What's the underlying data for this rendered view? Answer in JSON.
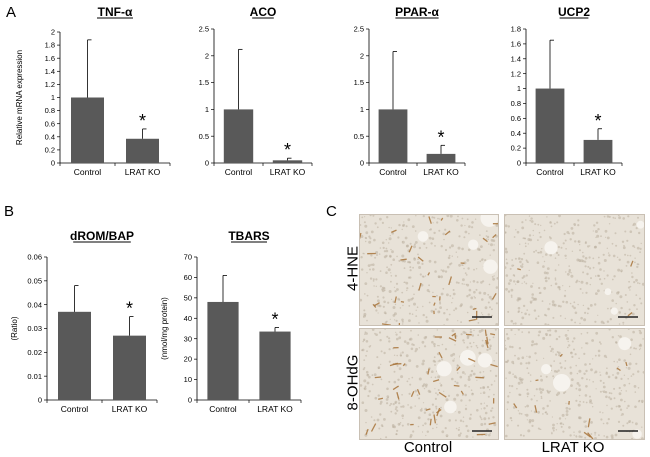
{
  "panels": {
    "a": "A",
    "b": "B",
    "c": "C"
  },
  "chart_data": [
    {
      "type": "bar",
      "title": "TNF-α",
      "ylabel": "Relative mRNA expression",
      "categories": [
        "Control",
        "LRAT KO"
      ],
      "values": [
        1.0,
        0.37
      ],
      "errors": [
        0.88,
        0.15
      ],
      "significance": [
        "",
        "*"
      ],
      "ylim": [
        0,
        2
      ],
      "yticks": [
        0,
        0.2,
        0.4,
        0.6,
        0.8,
        1,
        1.2,
        1.4,
        1.6,
        1.8,
        2
      ],
      "yticklabels": [
        "0",
        "0.2",
        "0.4",
        "0.6",
        "0.8",
        "1",
        "1.2",
        "1.4",
        "1.6",
        "1.8",
        "2"
      ]
    },
    {
      "type": "bar",
      "title": "ACO",
      "ylabel": "",
      "categories": [
        "Control",
        "LRAT KO"
      ],
      "values": [
        1.0,
        0.05
      ],
      "errors": [
        1.12,
        0.04
      ],
      "significance": [
        "",
        "*"
      ],
      "ylim": [
        0,
        2.5
      ],
      "yticks": [
        0,
        0.5,
        1,
        1.5,
        2,
        2.5
      ],
      "yticklabels": [
        "0",
        "0.5",
        "1",
        "1.5",
        "2",
        "2.5"
      ]
    },
    {
      "type": "bar",
      "title": "PPAR-α",
      "ylabel": "",
      "categories": [
        "Control",
        "LRAT KO"
      ],
      "values": [
        1.0,
        0.17
      ],
      "errors": [
        1.08,
        0.16
      ],
      "significance": [
        "",
        "*"
      ],
      "ylim": [
        0,
        2.5
      ],
      "yticks": [
        0,
        0.5,
        1,
        1.5,
        2,
        2.5
      ],
      "yticklabels": [
        "0",
        "0.5",
        "1",
        "1.5",
        "2",
        "2.5"
      ]
    },
    {
      "type": "bar",
      "title": "UCP2",
      "ylabel": "",
      "categories": [
        "Control",
        "LRAT KO"
      ],
      "values": [
        1.0,
        0.31
      ],
      "errors": [
        0.65,
        0.15
      ],
      "significance": [
        "",
        "*"
      ],
      "ylim": [
        0,
        1.8
      ],
      "yticks": [
        0,
        0.2,
        0.4,
        0.6,
        0.8,
        1,
        1.2,
        1.4,
        1.6,
        1.8
      ],
      "yticklabels": [
        "0",
        "0.2",
        "0.4",
        "0.6",
        "0.8",
        "1",
        "1.2",
        "1.4",
        "1.6",
        "1.8"
      ]
    },
    {
      "type": "bar",
      "title": "dROM/BAP",
      "ylabel": "(Ratio)",
      "categories": [
        "Control",
        "LRAT KO"
      ],
      "values": [
        0.037,
        0.027
      ],
      "errors": [
        0.011,
        0.008
      ],
      "significance": [
        "",
        "*"
      ],
      "ylim": [
        0,
        0.06
      ],
      "yticks": [
        0,
        0.01,
        0.02,
        0.03,
        0.04,
        0.05,
        0.06
      ],
      "yticklabels": [
        "0",
        "0.01",
        "0.02",
        "0.03",
        "0.04",
        "0.05",
        "0.06"
      ]
    },
    {
      "type": "bar",
      "title": "TBARS",
      "ylabel": "(nmol/mg protein)",
      "categories": [
        "Control",
        "LRAT KO"
      ],
      "values": [
        48,
        33.5
      ],
      "errors": [
        13,
        2
      ],
      "significance": [
        "",
        "*"
      ],
      "ylim": [
        0,
        70
      ],
      "yticks": [
        0,
        10,
        20,
        30,
        40,
        50,
        60,
        70
      ],
      "yticklabels": [
        "0",
        "10",
        "20",
        "30",
        "40",
        "50",
        "60",
        "70"
      ]
    }
  ],
  "micrographs": {
    "row_labels": [
      "4-HNE",
      "8-OHdG"
    ],
    "column_labels": [
      "Control",
      "LRAT KO"
    ]
  },
  "colors": {
    "bar": "#595959",
    "axis": "#000000",
    "tissue": "#e8e2d8",
    "stain": "#a8743a"
  }
}
